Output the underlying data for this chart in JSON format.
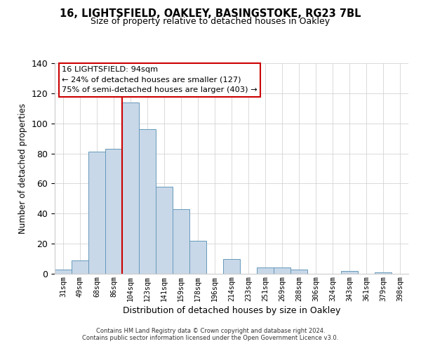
{
  "title": "16, LIGHTSFIELD, OAKLEY, BASINGSTOKE, RG23 7BL",
  "subtitle": "Size of property relative to detached houses in Oakley",
  "xlabel": "Distribution of detached houses by size in Oakley",
  "ylabel": "Number of detached properties",
  "bar_color": "#c8d8e8",
  "bar_edge_color": "#6699bb",
  "categories": [
    "31sqm",
    "49sqm",
    "68sqm",
    "86sqm",
    "104sqm",
    "123sqm",
    "141sqm",
    "159sqm",
    "178sqm",
    "196sqm",
    "214sqm",
    "233sqm",
    "251sqm",
    "269sqm",
    "288sqm",
    "306sqm",
    "324sqm",
    "343sqm",
    "361sqm",
    "379sqm",
    "398sqm"
  ],
  "values": [
    3,
    9,
    81,
    83,
    114,
    96,
    58,
    43,
    22,
    0,
    10,
    0,
    4,
    4,
    3,
    0,
    0,
    2,
    0,
    1,
    0
  ],
  "ylim": [
    0,
    140
  ],
  "yticks": [
    0,
    20,
    40,
    60,
    80,
    100,
    120,
    140
  ],
  "vline_x_index": 4,
  "vline_color": "#cc0000",
  "annotation_line1": "16 LIGHTSFIELD: 94sqm",
  "annotation_line2": "← 24% of detached houses are smaller (127)",
  "annotation_line3": "75% of semi-detached houses are larger (403) →",
  "footer_line1": "Contains HM Land Registry data © Crown copyright and database right 2024.",
  "footer_line2": "Contains public sector information licensed under the Open Government Licence v3.0.",
  "background_color": "#ffffff",
  "grid_color": "#cccccc"
}
